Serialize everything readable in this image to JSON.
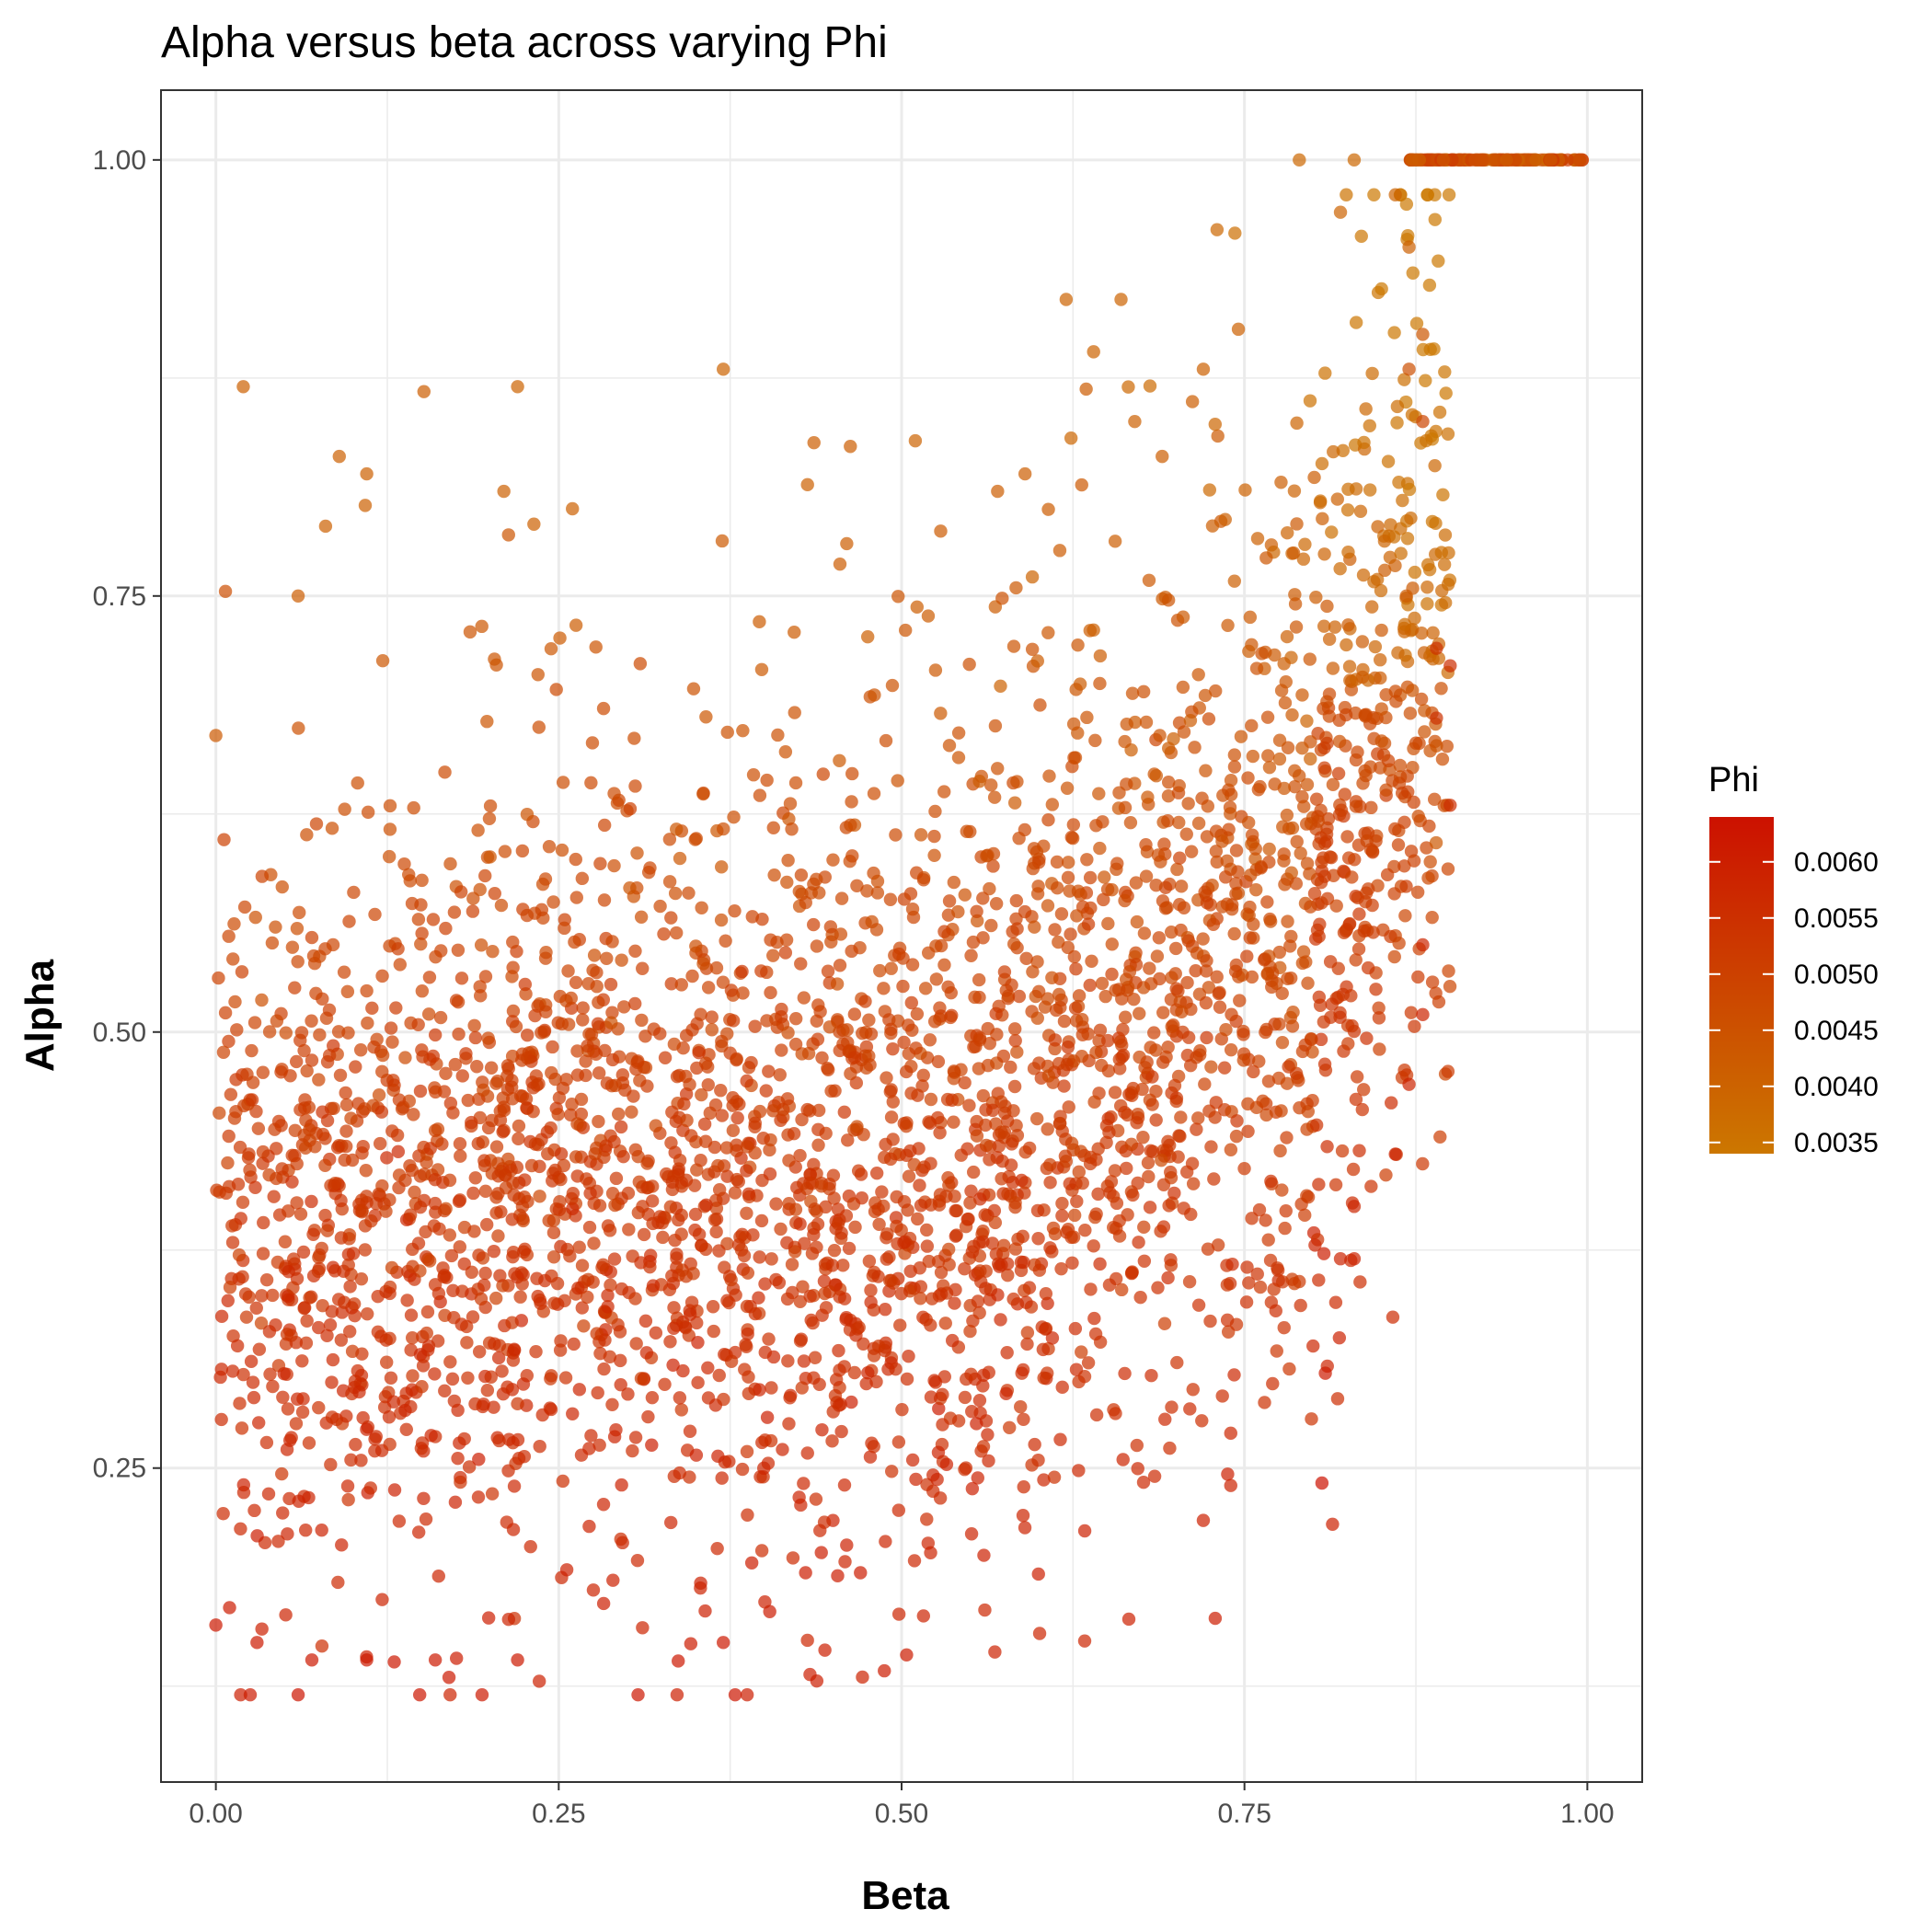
{
  "chart_data": {
    "type": "scatter",
    "title": "Alpha versus beta across varying Phi",
    "xlabel": "Beta",
    "ylabel": "Alpha",
    "xlim": [
      -0.04,
      1.04
    ],
    "ylim": [
      0.07,
      1.04
    ],
    "x_ticks": [
      0.0,
      0.25,
      0.5,
      0.75,
      1.0
    ],
    "x_tick_labels": [
      "0.00",
      "0.25",
      "0.50",
      "0.75",
      "1.00"
    ],
    "y_ticks": [
      0.25,
      0.5,
      0.75,
      1.0
    ],
    "y_tick_labels": [
      "0.25",
      "0.50",
      "0.75",
      "1.00"
    ],
    "grid": true,
    "color": {
      "name": "Phi",
      "range": [
        0.0034,
        0.0064
      ],
      "low_color": "#cc7700",
      "high_color": "#cc1100",
      "breaks": [
        0.0035,
        0.004,
        0.0045,
        0.005,
        0.0055,
        0.006
      ],
      "labels": [
        "0.0035",
        "0.0040",
        "0.0045",
        "0.0050",
        "0.0055",
        "0.0060"
      ]
    },
    "legend_position": "right",
    "point_opacity": 0.7,
    "points": [
      {
        "x": 0.02,
        "y": 0.87,
        "phi": 0.0041
      },
      {
        "x": 0.09,
        "y": 0.83,
        "phi": 0.0041
      },
      {
        "x": 0.11,
        "y": 0.82,
        "phi": 0.0041
      },
      {
        "x": 0.22,
        "y": 0.87,
        "phi": 0.004
      },
      {
        "x": 0.37,
        "y": 0.88,
        "phi": 0.004
      },
      {
        "x": 0.62,
        "y": 0.92,
        "phi": 0.004
      },
      {
        "x": 0.66,
        "y": 0.92,
        "phi": 0.004
      },
      {
        "x": 0.64,
        "y": 0.89,
        "phi": 0.004
      },
      {
        "x": 0.73,
        "y": 0.96,
        "phi": 0.0039
      },
      {
        "x": 0.79,
        "y": 1.0,
        "phi": 0.0039
      },
      {
        "x": 0.83,
        "y": 1.0,
        "phi": 0.0039
      },
      {
        "x": 0.82,
        "y": 0.97,
        "phi": 0.004
      },
      {
        "x": 0.86,
        "y": 0.98,
        "phi": 0.004
      },
      {
        "x": 0.87,
        "y": 0.95,
        "phi": 0.0041
      },
      {
        "x": 0.88,
        "y": 0.9,
        "phi": 0.0044
      },
      {
        "x": 0.87,
        "y": 0.88,
        "phi": 0.0046
      },
      {
        "x": 0.88,
        "y": 0.85,
        "phi": 0.0049
      },
      {
        "x": 0.89,
        "y": 0.72,
        "phi": 0.0055
      },
      {
        "x": 0.9,
        "y": 0.71,
        "phi": 0.0056
      },
      {
        "x": 0.89,
        "y": 0.68,
        "phi": 0.0055
      },
      {
        "x": 0.9,
        "y": 0.63,
        "phi": 0.0056
      },
      {
        "x": 0.88,
        "y": 0.55,
        "phi": 0.0058
      },
      {
        "x": 0.88,
        "y": 0.51,
        "phi": 0.0059
      },
      {
        "x": 0.87,
        "y": 0.47,
        "phi": 0.0059
      },
      {
        "x": 0.86,
        "y": 0.43,
        "phi": 0.0059
      },
      {
        "x": 0.83,
        "y": 0.4,
        "phi": 0.0058
      },
      {
        "x": 0.83,
        "y": 0.37,
        "phi": 0.0059
      },
      {
        "x": 0.82,
        "y": 0.37,
        "phi": 0.0059
      },
      {
        "x": 0.8,
        "y": 0.32,
        "phi": 0.0058
      },
      {
        "x": 0.74,
        "y": 0.24,
        "phi": 0.0059
      },
      {
        "x": 0.74,
        "y": 0.27,
        "phi": 0.0058
      },
      {
        "x": 0.72,
        "y": 0.22,
        "phi": 0.006
      },
      {
        "x": 0.56,
        "y": 0.2,
        "phi": 0.006
      },
      {
        "x": 0.47,
        "y": 0.19,
        "phi": 0.0061
      },
      {
        "x": 0.43,
        "y": 0.19,
        "phi": 0.0061
      },
      {
        "x": 0.37,
        "y": 0.15,
        "phi": 0.0062
      },
      {
        "x": 0.22,
        "y": 0.14,
        "phi": 0.0062
      },
      {
        "x": 0.17,
        "y": 0.13,
        "phi": 0.0062
      },
      {
        "x": 0.11,
        "y": 0.14,
        "phi": 0.0062
      },
      {
        "x": 0.06,
        "y": 0.12,
        "phi": 0.0063
      },
      {
        "x": 0.03,
        "y": 0.15,
        "phi": 0.0062
      },
      {
        "x": 0.0,
        "y": 0.16,
        "phi": 0.0062
      },
      {
        "x": 0.01,
        "y": 0.17,
        "phi": 0.0061
      },
      {
        "x": 0.07,
        "y": 0.14,
        "phi": 0.0062
      },
      {
        "x": 0.16,
        "y": 0.14,
        "phi": 0.0062
      },
      {
        "x": 0.0,
        "y": 0.67,
        "phi": 0.0043
      },
      {
        "x": 0.06,
        "y": 0.75,
        "phi": 0.0042
      },
      {
        "x": 0.08,
        "y": 0.79,
        "phi": 0.0041
      },
      {
        "x": 0.21,
        "y": 0.81,
        "phi": 0.0041
      },
      {
        "x": 0.26,
        "y": 0.8,
        "phi": 0.0041
      },
      {
        "x": 0.46,
        "y": 0.78,
        "phi": 0.0042
      },
      {
        "x": 0.57,
        "y": 0.81,
        "phi": 0.0042
      },
      {
        "x": 0.59,
        "y": 0.82,
        "phi": 0.0042
      },
      {
        "x": 0.67,
        "y": 0.85,
        "phi": 0.0041
      },
      {
        "x": 0.72,
        "y": 0.88,
        "phi": 0.0041
      },
      {
        "x": 0.69,
        "y": 0.83,
        "phi": 0.0042
      }
    ]
  }
}
